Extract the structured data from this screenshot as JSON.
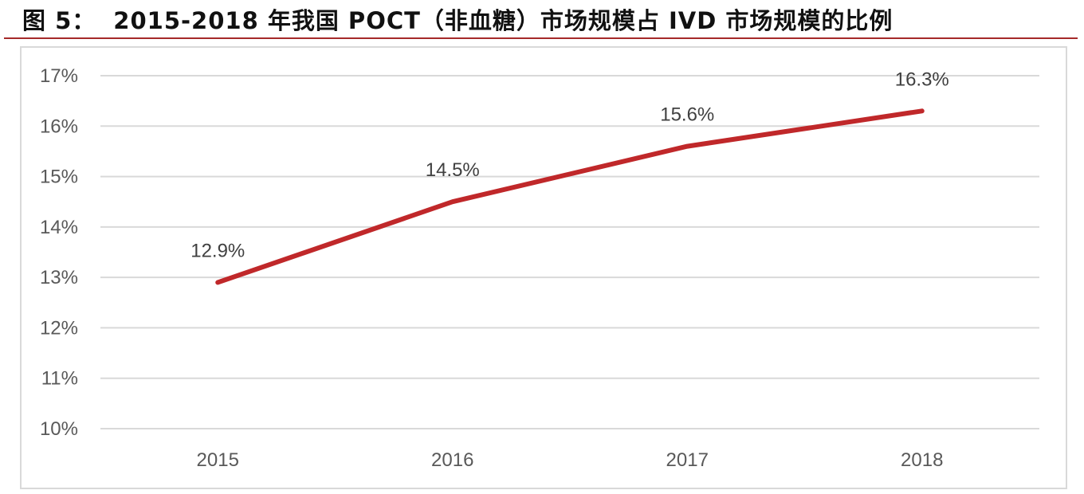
{
  "figure": {
    "label": "图 5：",
    "title": "2015-2018 年我国 POCT（非血糖）市场规模占 IVD 市场规模的比例"
  },
  "colors": {
    "line": "#C0282A",
    "title_rule": "#A52A2A",
    "grid": "#D9D9D9",
    "frame": "#D9D9D9",
    "tick_text": "#595959",
    "data_label_text": "#404040"
  },
  "chart_data": {
    "type": "line",
    "title": "2015-2018 年我国 POCT（非血糖）市场规模占 IVD 市场规模的比例",
    "xlabel": "",
    "ylabel": "",
    "categories": [
      "2015",
      "2016",
      "2017",
      "2018"
    ],
    "series": [
      {
        "name": "POCT（非血糖）市场规模占 IVD 市场规模的比例",
        "values": [
          12.9,
          14.5,
          15.6,
          16.3
        ],
        "labels": [
          "12.9%",
          "14.5%",
          "15.6%",
          "16.3%"
        ]
      }
    ],
    "ylim": [
      10,
      17
    ],
    "yticks": [
      "10%",
      "11%",
      "12%",
      "13%",
      "14%",
      "15%",
      "16%",
      "17%"
    ],
    "grid": true,
    "legend": null
  }
}
